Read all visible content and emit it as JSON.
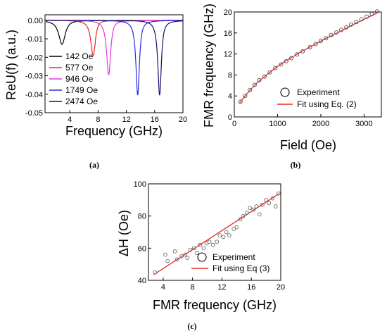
{
  "chart_data": [
    {
      "panel": "(a)",
      "type": "line",
      "xlabel": "Frequency (GHz)",
      "ylabel": "ReU(f) (a.u.)",
      "xlim": [
        0.5,
        20
      ],
      "ylim": [
        -0.05,
        0.003
      ],
      "xticks": [
        "4",
        "8",
        "12",
        "16",
        "20"
      ],
      "yticks": [
        "0.00",
        "-0.01",
        "-0.02",
        "-0.03",
        "-0.04",
        "-0.05"
      ],
      "grid": false,
      "legend_position": "bottom-left",
      "series": [
        {
          "name": "142 Oe",
          "color": "#000000",
          "resonance_ghz": 2.9,
          "min_value": -0.013,
          "overshoot": 0.0005,
          "width_ghz": 0.55
        },
        {
          "name": "577 Oe",
          "color": "#e8262a",
          "resonance_ghz": 7.3,
          "min_value": -0.019,
          "overshoot": 0.0015,
          "width_ghz": 0.4
        },
        {
          "name": "946 Oe",
          "color": "#e535e5",
          "resonance_ghz": 9.5,
          "min_value": -0.0295,
          "overshoot": 0.0015,
          "width_ghz": 0.35
        },
        {
          "name": "1749 Oe",
          "color": "#2b2bd6",
          "resonance_ghz": 13.6,
          "min_value": -0.0405,
          "overshoot": 0.0012,
          "width_ghz": 0.3
        },
        {
          "name": "2474 Oe",
          "color": "#10106e",
          "resonance_ghz": 16.7,
          "min_value": -0.0405,
          "overshoot": 0.0012,
          "width_ghz": 0.3
        }
      ]
    },
    {
      "panel": "(b)",
      "type": "scatter",
      "xlabel": "Field (Oe)",
      "ylabel": "FMR frequency (GHz)",
      "xlim": [
        0,
        3400
      ],
      "ylim": [
        0,
        20
      ],
      "xticks": [
        "0",
        "1000",
        "2000",
        "3000"
      ],
      "yticks": [
        "0",
        "4",
        "8",
        "12",
        "16",
        "20"
      ],
      "grid": false,
      "legend_position": "bottom-right",
      "series": [
        {
          "name": "Experiment",
          "marker": "open-circle",
          "x": [
            142,
            250,
            360,
            470,
            577,
            700,
            820,
            946,
            1080,
            1200,
            1320,
            1450,
            1580,
            1749,
            1880,
            2000,
            2120,
            2240,
            2360,
            2474,
            2590,
            2700,
            2820,
            2940,
            3060,
            3180,
            3300
          ],
          "y": [
            2.9,
            4.0,
            5.1,
            6.1,
            7.0,
            7.7,
            8.5,
            9.3,
            10.0,
            10.6,
            11.2,
            11.9,
            12.5,
            13.3,
            13.9,
            14.5,
            15.0,
            15.6,
            16.1,
            16.6,
            17.1,
            17.6,
            18.1,
            18.6,
            19.1,
            19.6,
            20.1
          ]
        },
        {
          "name": "Fit using Eq. (2)",
          "color": "#e8262a",
          "line": true,
          "x": [
            120,
            200,
            300,
            400,
            500,
            700,
            900,
            1100,
            1300,
            1500,
            1700,
            1900,
            2100,
            2300,
            2500,
            2700,
            2900,
            3100,
            3300
          ],
          "y": [
            2.6,
            3.5,
            4.5,
            5.4,
            6.3,
            7.7,
            9.0,
            10.2,
            11.2,
            12.2,
            13.1,
            14.0,
            14.9,
            15.7,
            16.5,
            17.4,
            18.2,
            19.0,
            19.8
          ]
        }
      ]
    },
    {
      "panel": "(c)",
      "type": "scatter",
      "xlabel": "FMR frequency (GHz)",
      "ylabel": "ΔH (Oe)",
      "xlim": [
        2,
        20
      ],
      "ylim": [
        40,
        100
      ],
      "xticks": [
        "4",
        "8",
        "12",
        "16",
        "20"
      ],
      "yticks": [
        "40",
        "60",
        "80",
        "100"
      ],
      "grid": false,
      "legend_position": "bottom-right",
      "series": [
        {
          "name": "Experiment",
          "marker": "open-circle",
          "x": [
            2.9,
            4.3,
            4.6,
            5.6,
            5.9,
            6.5,
            7.0,
            7.3,
            7.7,
            8.2,
            8.6,
            9.0,
            9.5,
            9.9,
            10.3,
            10.8,
            11.3,
            11.7,
            12.2,
            12.6,
            13.0,
            13.6,
            14.0,
            14.5,
            14.9,
            15.4,
            15.8,
            16.3,
            16.7,
            17.1,
            17.5,
            18.0,
            18.4,
            18.9,
            19.3,
            19.7
          ],
          "y": [
            45,
            56,
            52,
            58,
            53,
            55,
            56,
            54,
            59,
            60,
            57,
            62,
            60,
            63,
            64,
            62,
            64,
            68,
            67,
            70,
            68,
            72,
            73,
            78,
            80,
            82,
            85,
            84,
            86,
            81,
            87,
            90,
            88,
            91,
            86,
            94
          ]
        },
        {
          "name": "Fit using Eq (3)",
          "color": "#e8262a",
          "line": true,
          "x": [
            2.7,
            19.8
          ],
          "y": [
            43.5,
            94
          ]
        }
      ]
    }
  ],
  "captions": {
    "a": "(a)",
    "b": "(b)",
    "c": "(c)"
  }
}
